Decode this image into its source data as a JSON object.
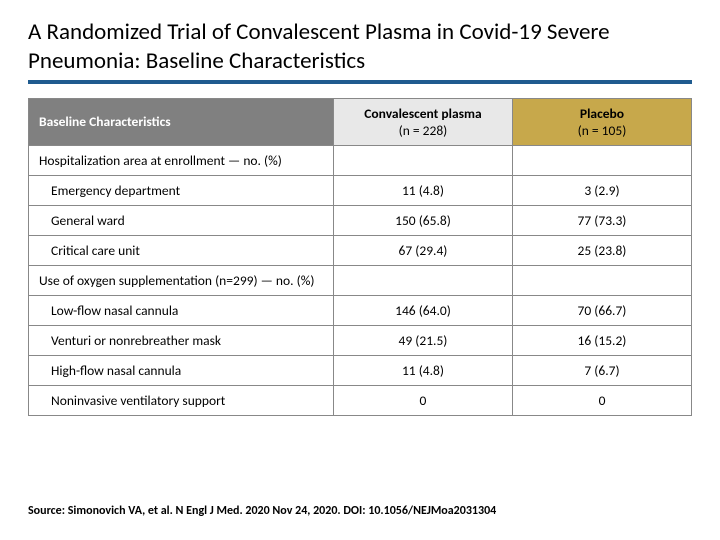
{
  "title": "A Randomized Trial of Convalescent Plasma in Covid-19 Severe Pneumonia: Baseline Characteristics",
  "table": {
    "header": {
      "label": "Baseline Characteristics",
      "plasma_title": "Convalescent plasma",
      "plasma_n": "(n = 228)",
      "placebo_title": "Placebo",
      "placebo_n": "(n = 105)"
    },
    "sections": [
      {
        "heading": "Hospitalization area at enrollment — no. (%)",
        "rows": [
          {
            "label": "Emergency department",
            "plasma": "11 (4.8)",
            "placebo": "3 (2.9)"
          },
          {
            "label": "General ward",
            "plasma": "150 (65.8)",
            "placebo": "77 (73.3)"
          },
          {
            "label": "Critical care unit",
            "plasma": "67 (29.4)",
            "placebo": "25 (23.8)"
          }
        ]
      },
      {
        "heading": "Use of oxygen supplementation (n=299) — no. (%)",
        "rows": [
          {
            "label": "Low-flow nasal cannula",
            "plasma": "146 (64.0)",
            "placebo": "70 (66.7)"
          },
          {
            "label": "Venturi or nonrebreather mask",
            "plasma": "49 (21.5)",
            "placebo": "16 (15.2)"
          },
          {
            "label": "High-flow nasal cannula",
            "plasma": "11 (4.8)",
            "placebo": "7 (6.7)"
          },
          {
            "label": "Noninvasive ventilatory support",
            "plasma": "0",
            "placebo": "0"
          }
        ]
      }
    ]
  },
  "source": "Source: Simonovich VA, et al. N Engl J Med. 2020 Nov 24, 2020. DOI: 10.1056/NEJMoa2031304"
}
